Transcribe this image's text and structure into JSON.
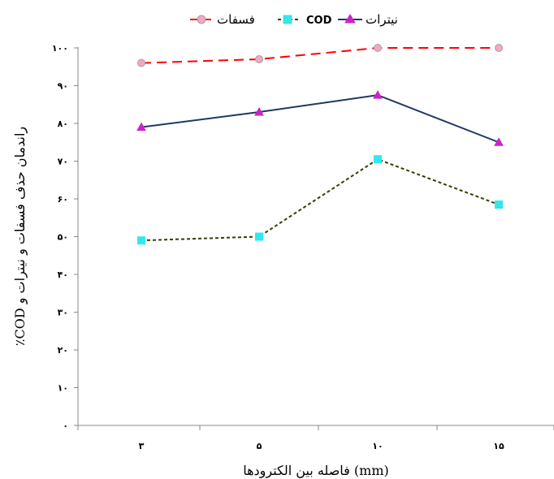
{
  "chart_data": {
    "type": "line",
    "categories": [
      "۳",
      "۵",
      "۱۰",
      "۱۵"
    ],
    "series": [
      {
        "name": "فسفات",
        "values": [
          96,
          97,
          100,
          100
        ],
        "color": "#ff0000",
        "dash": "dashed",
        "marker": "circle",
        "marker_fill": "#f4a6c4",
        "marker_stroke": "#a0a0a0"
      },
      {
        "name": "COD",
        "values": [
          49,
          50,
          70.5,
          58.5
        ],
        "color": "#3a3a00",
        "dash": "dashed",
        "marker": "square",
        "marker_fill": "#33e6f0",
        "marker_stroke": "#33e6f0"
      },
      {
        "name": "نیترات",
        "values": [
          79,
          83,
          87.5,
          75
        ],
        "color": "#1f3864",
        "dash": "solid",
        "marker": "triangle",
        "marker_fill": "#cc22cc",
        "marker_stroke": "#cc22cc"
      }
    ],
    "y_ticks": [
      "۰",
      "۱۰",
      "۲۰",
      "۳۰",
      "۴۰",
      "۵۰",
      "۶۰",
      "۷۰",
      "۸۰",
      "۹۰",
      "۱۰۰"
    ],
    "ylim": [
      0,
      100
    ],
    "xlabel": "فاصله بین الکترودها (mm)",
    "ylabel": "٪COD راندمان حذف فسفات و نیترات و",
    "legend_position": "top",
    "grid": false
  }
}
